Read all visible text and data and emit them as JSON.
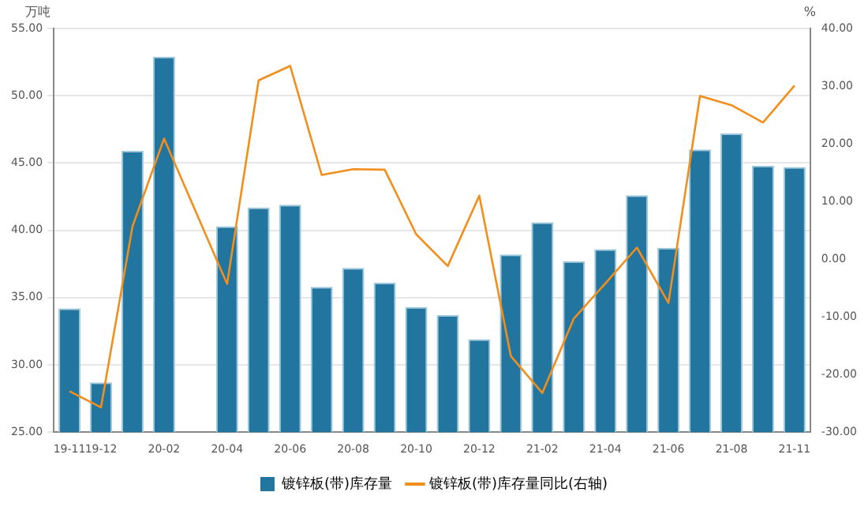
{
  "chart_data": {
    "type": "bar",
    "ylabel": "万吨",
    "y2label": "%",
    "categories": [
      "19-11",
      "19-12",
      null,
      "20-02",
      null,
      "20-04",
      null,
      "20-06",
      null,
      "20-08",
      null,
      "20-10",
      null,
      "20-12",
      null,
      "21-02",
      null,
      "21-04",
      null,
      "21-06",
      null,
      "21-08",
      null,
      "21-11"
    ],
    "series": [
      {
        "name": "镀锌板(带)库存量",
        "color": "#21759f",
        "values": [
          34.2,
          28.7,
          45.9,
          52.9,
          null,
          40.3,
          41.7,
          41.9,
          35.8,
          37.2,
          36.1,
          34.3,
          33.7,
          31.9,
          38.2,
          40.6,
          37.7,
          38.6,
          42.6,
          38.7,
          46.0,
          47.2,
          44.8,
          44.7
        ]
      },
      {
        "name": "镀锌板(带)库存量同比(右轴)",
        "type": "line",
        "axis": "y2",
        "color": "#f28e1c",
        "values": [
          -22.9,
          -25.7,
          5.7,
          20.9,
          8.3,
          -4.3,
          31.0,
          33.5,
          14.6,
          15.6,
          15.5,
          4.3,
          -1.2,
          11.0,
          -16.8,
          -23.2,
          -10.3,
          -4.2,
          2.0,
          -7.6,
          28.3,
          26.7,
          23.7,
          30.1
        ]
      }
    ],
    "ylim": [
      25,
      55
    ],
    "yticks": [
      {
        "value": 25,
        "label": "25.00"
      },
      {
        "value": 30,
        "label": "30.00"
      },
      {
        "value": 35,
        "label": "35.00"
      },
      {
        "value": 40,
        "label": "40.00"
      },
      {
        "value": 45,
        "label": "45.00"
      },
      {
        "value": 50,
        "label": "50.00"
      },
      {
        "value": 55,
        "label": "55.00"
      }
    ],
    "y2lim": [
      -30,
      40
    ],
    "y2ticks": [
      {
        "value": -30,
        "label": "-30.00"
      },
      {
        "value": -20,
        "label": "-20.00"
      },
      {
        "value": -10,
        "label": "-10.00"
      },
      {
        "value": 0,
        "label": "0.00"
      },
      {
        "value": 10,
        "label": "10.00"
      },
      {
        "value": 20,
        "label": "20.00"
      },
      {
        "value": 30,
        "label": "30.00"
      },
      {
        "value": 40,
        "label": "40.00"
      }
    ],
    "grid": "y",
    "legend": "bottom",
    "marker": "none",
    "line_style": "solid"
  }
}
